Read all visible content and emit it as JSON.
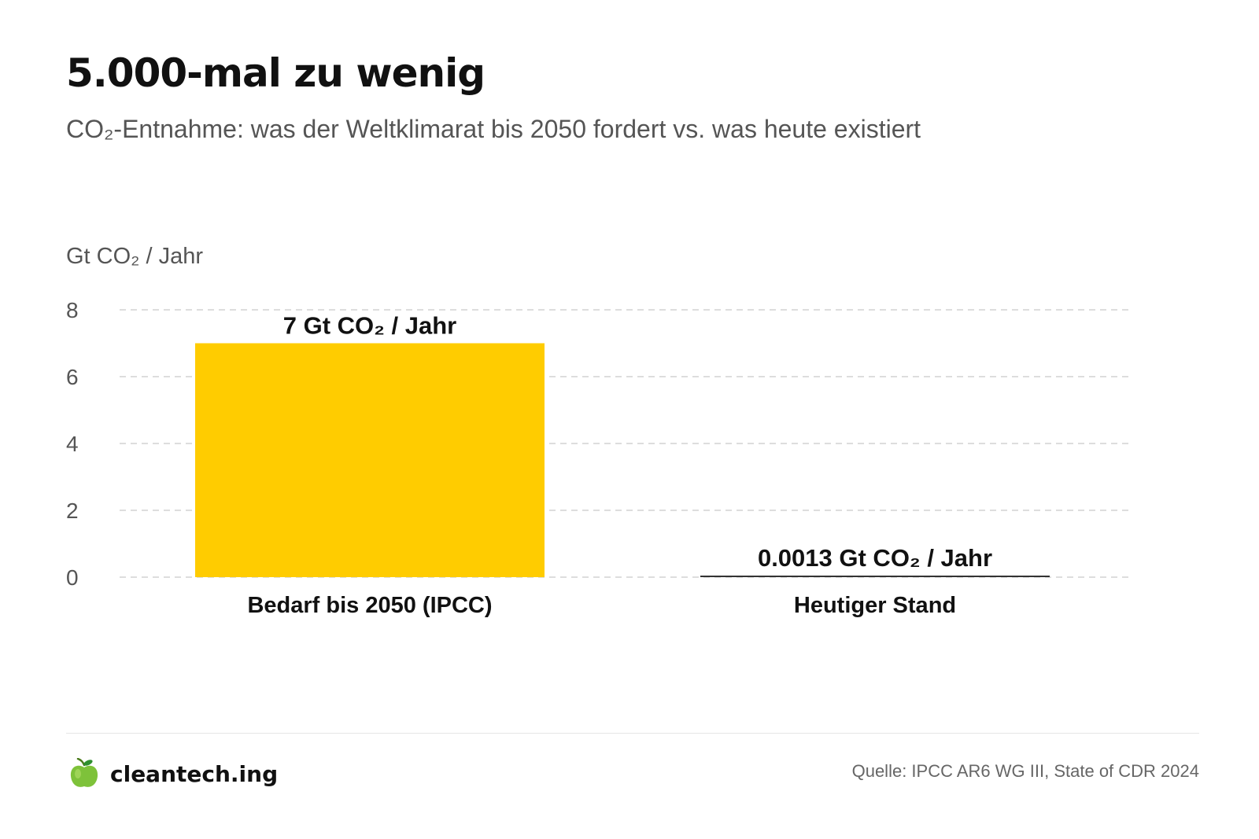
{
  "header": {
    "title": "5.000-mal zu wenig",
    "subtitle": "CO₂-Entnahme: was der Weltklimarat bis 2050 fordert vs. was heute existiert"
  },
  "chart_data": {
    "type": "bar",
    "ylabel": "Gt CO₂ / Jahr",
    "categories": [
      "Bedarf bis 2050 (IPCC)",
      "Heutiger Stand"
    ],
    "values": [
      7,
      0.0013
    ],
    "value_labels": [
      "7 Gt CO₂ / Jahr",
      "0.0013 Gt CO₂ / Jahr"
    ],
    "ylim": [
      0,
      8
    ],
    "yticks": [
      0,
      2,
      4,
      6,
      8
    ],
    "grid": true,
    "colors": {
      "bars": [
        "#FFCC00",
        "#333333"
      ],
      "grid": "#dddddd"
    }
  },
  "footer": {
    "brand": "cleantech.ing",
    "brand_icon": "green-apple-icon",
    "source": "Quelle: IPCC AR6 WG III, State of CDR 2024"
  }
}
